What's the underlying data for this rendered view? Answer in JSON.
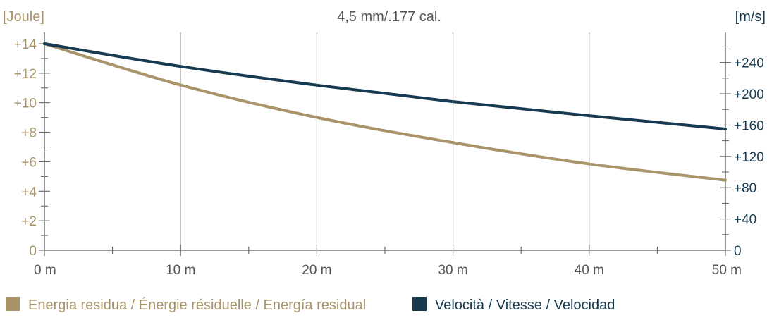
{
  "chart_data": {
    "type": "line",
    "title": "4,5 mm/.177 cal.",
    "left_unit": "[Joule]",
    "right_unit": "[m/s]",
    "x": [
      0,
      10,
      20,
      30,
      40,
      50
    ],
    "x_tick_labels": [
      "0 m",
      "10 m",
      "20 m",
      "30 m",
      "40 m",
      "50 m"
    ],
    "xlim": [
      0,
      50
    ],
    "y_left_ticks": [
      "0",
      "+2",
      "+4",
      "+6",
      "+8",
      "+10",
      "+12",
      "+14"
    ],
    "y_left_lim": [
      0,
      14
    ],
    "y_right_ticks": [
      "0",
      "+40",
      "+80",
      "+120",
      "+160",
      "+200",
      "+240"
    ],
    "y_right_lim": [
      0,
      264
    ],
    "grid": "vertical",
    "legend_position": "bottom",
    "series": [
      {
        "name": "Energia residua / Énergie résiduelle / Energía residual",
        "axis": "left",
        "color": "#a89468",
        "values": [
          14,
          11.2,
          9.0,
          7.3,
          5.85,
          4.75
        ]
      },
      {
        "name": "Velocità / Vitesse / Velocidad",
        "axis": "right",
        "color": "#163a4f",
        "values": [
          264,
          235,
          211,
          190,
          172,
          155
        ]
      }
    ]
  }
}
